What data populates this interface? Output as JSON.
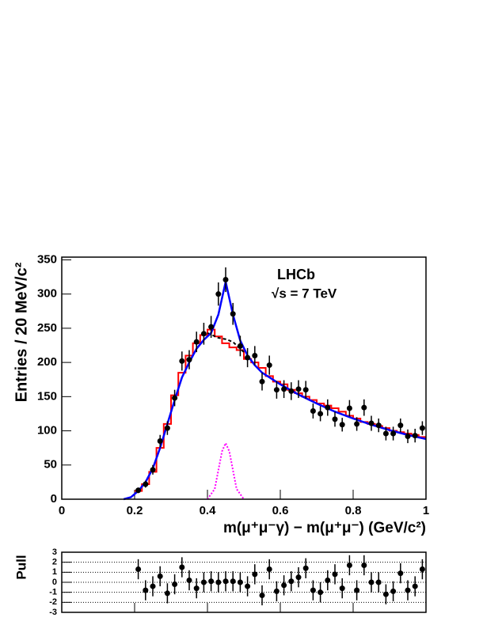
{
  "chart_data": [
    {
      "type": "errorbar",
      "annotations": [
        "LHCb",
        "√s = 7 TeV"
      ],
      "xlabel": "m(μ⁺μ⁻γ) − m(μ⁺μ⁻) (GeV/c²)",
      "ylabel": "Entries / 20 MeV/c²",
      "x": [
        0.21,
        0.23,
        0.25,
        0.27,
        0.29,
        0.31,
        0.33,
        0.35,
        0.37,
        0.39,
        0.41,
        0.43,
        0.45,
        0.47,
        0.49,
        0.51,
        0.53,
        0.55,
        0.57,
        0.59,
        0.61,
        0.63,
        0.65,
        0.67,
        0.69,
        0.71,
        0.73,
        0.75,
        0.77,
        0.79,
        0.81,
        0.83,
        0.85,
        0.87,
        0.89,
        0.91,
        0.93,
        0.95,
        0.97,
        0.99
      ],
      "values": [
        13,
        22,
        43,
        85,
        104,
        148,
        202,
        204,
        230,
        242,
        252,
        300,
        321,
        271,
        224,
        207,
        210,
        172,
        196,
        160,
        161,
        158,
        161,
        160,
        129,
        125,
        134,
        117,
        109,
        133,
        110,
        134,
        111,
        108,
        96,
        96,
        108,
        92,
        93,
        104
      ],
      "errors": [
        4,
        5,
        7,
        9,
        10,
        12,
        14,
        14,
        15,
        16,
        16,
        17,
        18,
        16,
        15,
        14,
        14,
        13,
        14,
        13,
        13,
        13,
        13,
        13,
        11,
        11,
        12,
        11,
        10,
        12,
        10,
        12,
        11,
        10,
        10,
        10,
        10,
        10,
        10,
        10
      ],
      "color": "#000000",
      "xlim": [
        0,
        1
      ],
      "ylim": [
        0,
        354
      ],
      "xticks": [
        0,
        0.2,
        0.4,
        0.6,
        0.8,
        1
      ],
      "yticks": [
        0,
        50,
        100,
        150,
        200,
        250,
        300,
        350
      ],
      "histogram": {
        "color": "#ff0000",
        "bins": [
          0.2,
          0.22,
          0.24,
          0.26,
          0.28,
          0.3,
          0.32,
          0.34,
          0.36,
          0.38,
          0.4,
          0.42,
          0.44,
          0.46,
          0.48,
          0.5,
          0.52,
          0.54,
          0.56,
          0.58,
          0.6,
          0.62,
          0.64,
          0.66,
          0.68,
          0.7,
          0.72,
          0.74,
          0.76,
          0.78,
          0.8,
          0.82,
          0.84,
          0.86,
          0.88,
          0.9,
          0.92,
          0.94,
          0.96,
          0.98,
          1.0
        ],
        "values": [
          12,
          22,
          40,
          75,
          110,
          152,
          185,
          210,
          228,
          240,
          248,
          238,
          228,
          222,
          218,
          205,
          200,
          192,
          180,
          172,
          168,
          160,
          155,
          150,
          145,
          140,
          137,
          133,
          128,
          122,
          118,
          113,
          110,
          107,
          104,
          100,
          98,
          96,
          94,
          91
        ]
      },
      "curves": [
        {
          "color": "#000000",
          "style": "dashed",
          "x": [
            0.4,
            0.43,
            0.45,
            0.47,
            0.5
          ],
          "values": [
            243,
            236,
            234,
            230,
            215
          ]
        },
        {
          "color": "#ff00ff",
          "style": "dotted",
          "x": [
            0.4,
            0.42,
            0.44,
            0.45,
            0.46,
            0.48,
            0.5
          ],
          "values": [
            0,
            15,
            70,
            82,
            70,
            15,
            0
          ]
        },
        {
          "color": "#0000ff",
          "style": "solid",
          "x": [
            0.17,
            0.19,
            0.21,
            0.23,
            0.25,
            0.27,
            0.29,
            0.31,
            0.33,
            0.35,
            0.37,
            0.39,
            0.41,
            0.43,
            0.45,
            0.47,
            0.49,
            0.51,
            0.53,
            0.55,
            0.6,
            0.65,
            0.7,
            0.75,
            0.8,
            0.85,
            0.9,
            0.95,
            1.0
          ],
          "values": [
            0,
            3,
            12,
            25,
            45,
            75,
            110,
            145,
            178,
            200,
            220,
            233,
            243,
            270,
            318,
            270,
            232,
            210,
            196,
            185,
            168,
            153,
            140,
            128,
            118,
            109,
            101,
            94,
            88
          ]
        }
      ]
    },
    {
      "type": "pull",
      "ylabel": "Pull",
      "x": [
        0.21,
        0.23,
        0.25,
        0.27,
        0.29,
        0.31,
        0.33,
        0.35,
        0.37,
        0.39,
        0.41,
        0.43,
        0.45,
        0.47,
        0.49,
        0.51,
        0.53,
        0.55,
        0.57,
        0.59,
        0.61,
        0.63,
        0.65,
        0.67,
        0.69,
        0.71,
        0.73,
        0.75,
        0.77,
        0.79,
        0.81,
        0.83,
        0.85,
        0.87,
        0.89,
        0.91,
        0.93,
        0.95,
        0.97,
        0.99
      ],
      "values": [
        1.3,
        -0.8,
        -0.4,
        0.6,
        -1.1,
        -0.2,
        1.5,
        0.2,
        -0.6,
        0.0,
        0.1,
        0.0,
        0.1,
        0.1,
        0.0,
        -0.4,
        0.8,
        -1.3,
        1.3,
        -0.9,
        -0.3,
        0.1,
        0.5,
        1.4,
        -0.8,
        -1.0,
        0.2,
        0.8,
        -0.6,
        1.7,
        -0.8,
        1.7,
        0.0,
        0.0,
        -1.2,
        -0.9,
        0.9,
        -0.8,
        -0.4,
        1.3
      ],
      "errors": [
        1,
        1,
        1,
        1,
        1,
        1,
        1,
        1,
        1,
        1,
        1,
        1,
        1,
        1,
        1,
        1,
        1,
        1,
        1,
        1,
        1,
        1,
        1,
        1,
        1,
        1,
        1,
        1,
        1,
        1,
        1,
        1,
        1,
        1,
        1,
        1,
        1,
        1,
        1,
        1
      ],
      "color": "#000000",
      "xlim": [
        0,
        1
      ],
      "ylim": [
        -3,
        3
      ],
      "xticks": [
        0,
        0.2,
        0.4,
        0.6,
        0.8,
        1
      ],
      "yticks": [
        3,
        2,
        1,
        0,
        -1,
        -2,
        -3
      ],
      "grid": true
    }
  ]
}
